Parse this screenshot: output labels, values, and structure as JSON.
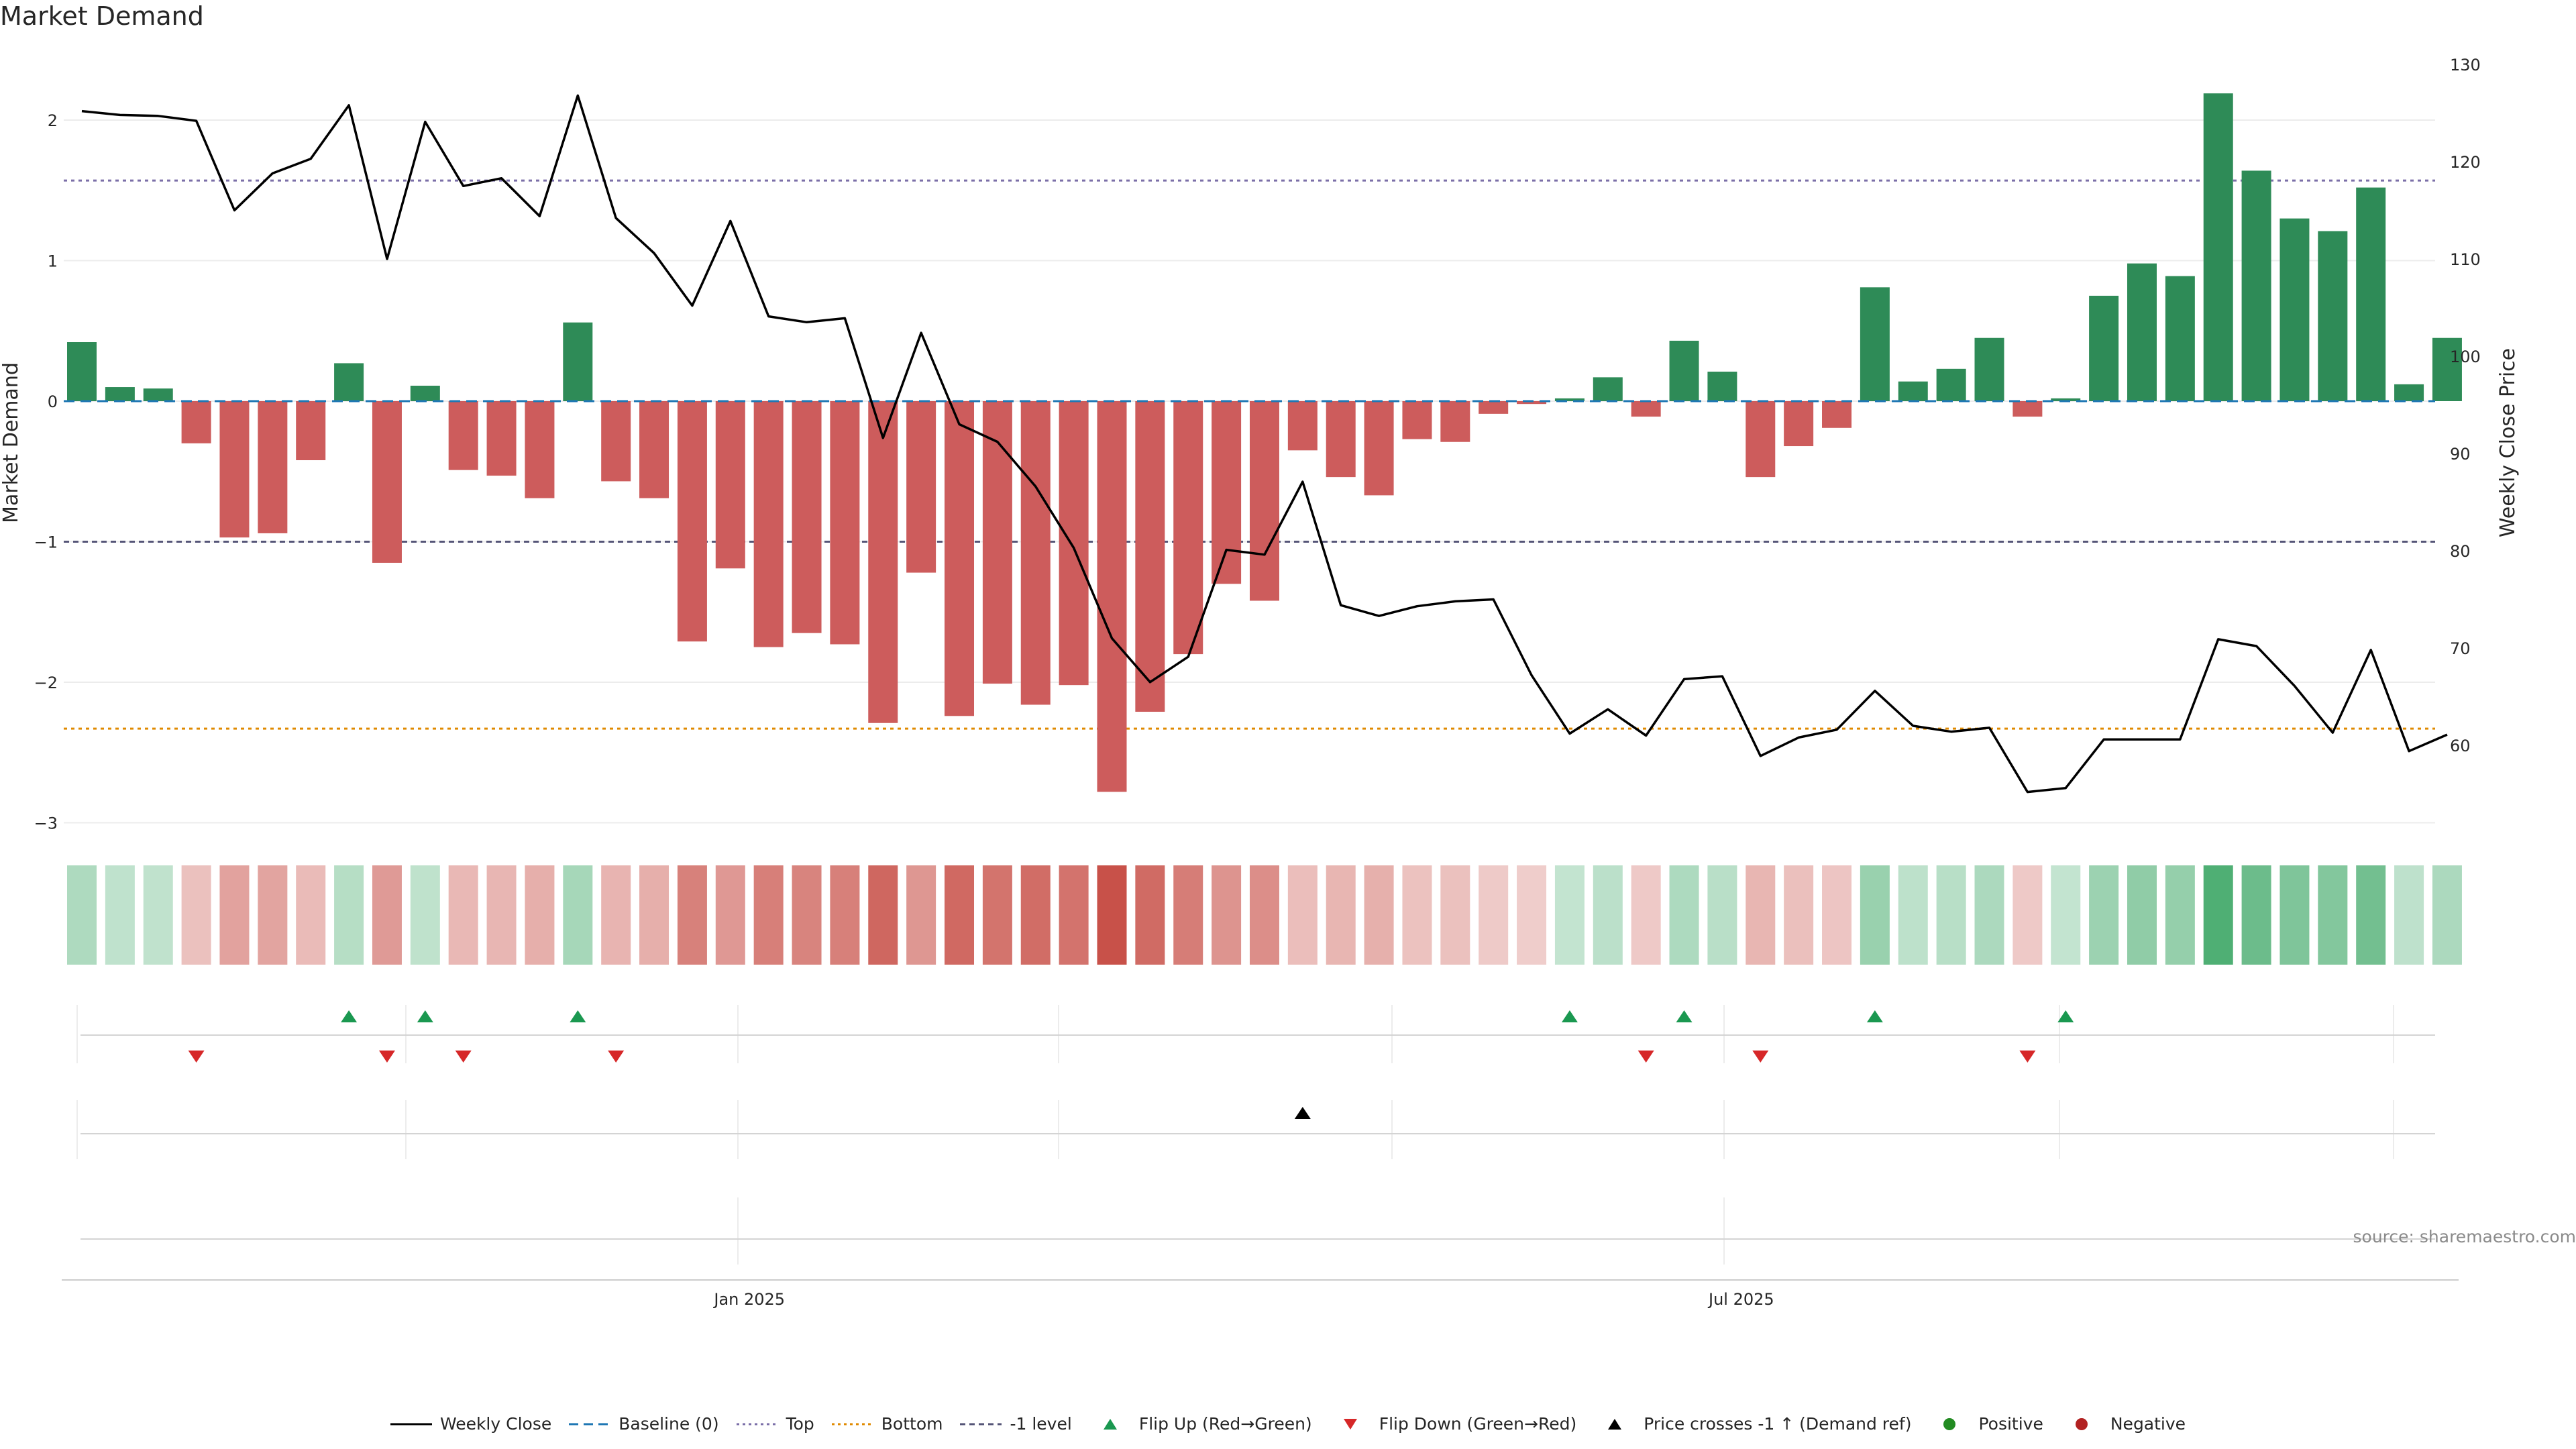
{
  "title": "Market Demand",
  "source": "source: sharemaestro.com",
  "colors": {
    "positive": "#2e8b57",
    "negative": "#cd5c5c",
    "price": "#000000",
    "baseline": "#1f77b4",
    "top": "#7b6fa8",
    "bottom": "#e08a00",
    "minus1": "#555577",
    "flipUp": "#1a9850",
    "flipDown": "#d62728"
  },
  "chart_data": {
    "type": "bar+line",
    "title": "Market Demand",
    "ylabel": "Market Demand",
    "y2label": "Weekly Close Price",
    "ylim": [
      -3.0,
      2.4
    ],
    "y2lim": [
      51.7,
      130
    ],
    "yticks": [
      2,
      1,
      0,
      -1,
      -2,
      -3
    ],
    "ytick_labels": [
      "2",
      "1",
      "0",
      "−1",
      "−2",
      "−3"
    ],
    "y2ticks": [
      130,
      120,
      110,
      100,
      90,
      80,
      70,
      60
    ],
    "xtick_labels": [
      {
        "label": "Jan 2025",
        "week": 17.5
      },
      {
        "label": "Jul 2025",
        "week": 43.5
      }
    ],
    "week_count": 63,
    "demand": [
      0.42,
      0.1,
      0.09,
      -0.3,
      -0.97,
      -0.94,
      -0.42,
      0.27,
      -1.15,
      0.11,
      -0.49,
      -0.53,
      -0.69,
      0.56,
      -0.57,
      -0.69,
      -1.71,
      -1.19,
      -1.75,
      -1.65,
      -1.73,
      -2.29,
      -1.22,
      -2.24,
      -2.01,
      -2.16,
      -2.02,
      -2.78,
      -2.21,
      -1.8,
      -1.3,
      -1.42,
      -0.35,
      -0.54,
      -0.67,
      -0.27,
      -0.29,
      -0.09,
      -0.02,
      0.02,
      0.17,
      -0.11,
      0.43,
      0.21,
      -0.54,
      -0.32,
      -0.19,
      0.81,
      0.14,
      0.23,
      0.45,
      -0.11,
      0.02,
      0.75,
      0.98,
      0.89,
      2.19,
      1.64,
      1.3,
      1.21,
      1.52,
      0.12,
      0.45
    ],
    "price": [
      125.2,
      124.8,
      124.7,
      124.2,
      115.0,
      118.8,
      120.3,
      125.8,
      110.0,
      124.1,
      117.5,
      118.3,
      114.4,
      126.8,
      114.2,
      110.6,
      105.2,
      113.9,
      104.1,
      103.5,
      103.9,
      91.6,
      102.4,
      93.0,
      91.2,
      86.6,
      80.3,
      71.0,
      66.5,
      69.1,
      80.1,
      79.6,
      87.1,
      74.4,
      73.3,
      74.3,
      74.8,
      75.0,
      67.2,
      61.2,
      63.7,
      61.0,
      66.8,
      67.1,
      58.9,
      60.8,
      61.6,
      65.6,
      62.0,
      61.4,
      61.8,
      55.2,
      55.6,
      60.6,
      60.6,
      60.6,
      70.9,
      70.2,
      66.1,
      61.3,
      69.8,
      59.4,
      61.1
    ],
    "levels": [
      {
        "name": "Top",
        "value": 1.57
      },
      {
        "name": "Bottom",
        "value": -2.33
      },
      {
        "name": "-1 level",
        "value": -1.0
      },
      {
        "name": "Baseline (0)",
        "value": 0
      }
    ],
    "heat_strip": "weekly demand intensity (same values as demand)",
    "flip_up_weeks": [
      7,
      9,
      13,
      39,
      42,
      47,
      52
    ],
    "flip_down_weeks": [
      3,
      8,
      10,
      14,
      41,
      44,
      51
    ],
    "price_cross_weeks": [
      32
    ],
    "legend": [
      "Weekly Close",
      "Baseline (0)",
      "Top",
      "Bottom",
      "-1 level",
      "Flip Up (Red→Green)",
      "Flip Down (Green→Red)",
      "Price crosses -1 ↑ (Demand ref)",
      "Positive",
      "Negative"
    ],
    "legend_location": "bottom-center"
  }
}
